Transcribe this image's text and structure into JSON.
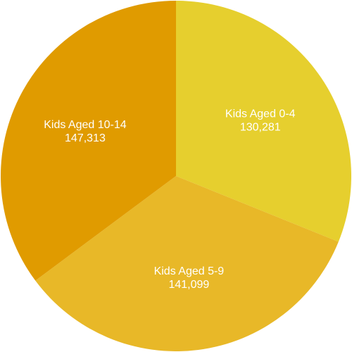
{
  "chart_data": {
    "type": "pie",
    "title": "",
    "slices": [
      {
        "label": "Kids Aged 0-4",
        "value": 130281,
        "value_text": "130,281",
        "color": "#E6CF2E"
      },
      {
        "label": "Kids Aged 5-9",
        "value": 141099,
        "value_text": "141,099",
        "color": "#E8B828"
      },
      {
        "label": "Kids Aged 10-14",
        "value": 147313,
        "value_text": "147,313",
        "color": "#E09B00"
      }
    ],
    "start": "12 o'clock",
    "direction": "clockwise",
    "legend": "none",
    "data_labels": "inside"
  }
}
